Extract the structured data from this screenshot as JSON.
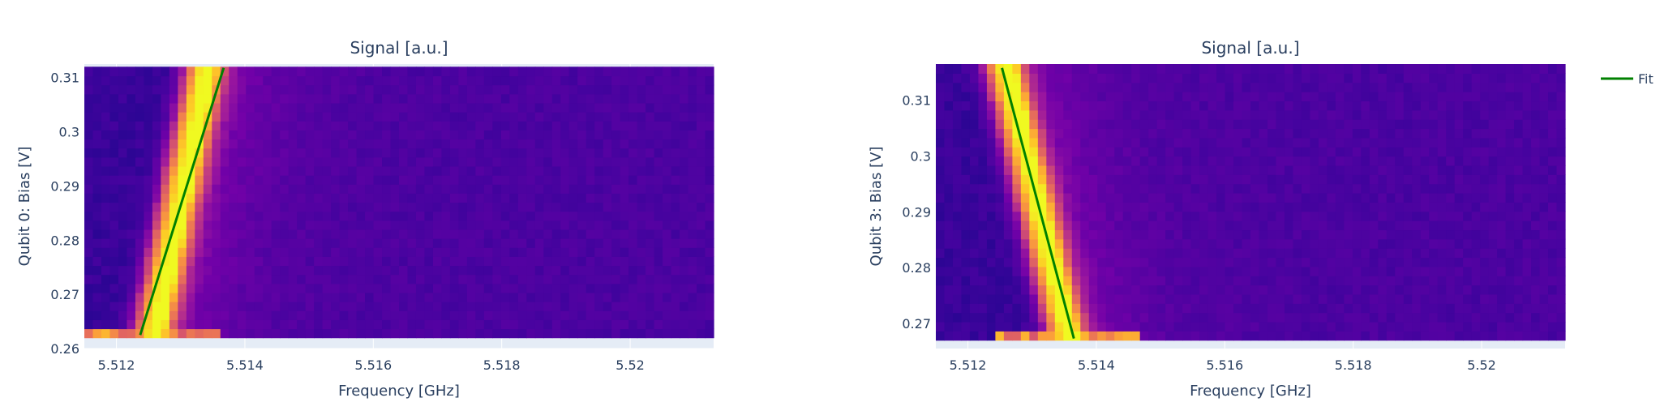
{
  "legend": {
    "fit_label": "Fit",
    "fit_color": "#008000",
    "placement": "top-right"
  },
  "colors": {
    "plot_bg": "#E5ECF6",
    "grid": "#ffffff",
    "text": "#2a3f5f",
    "fit": "#008000"
  },
  "colorscale": [
    "#0d0887",
    "#46039f",
    "#7201a8",
    "#9c179e",
    "#bd3786",
    "#d8576b",
    "#ed7953",
    "#fb9f3a",
    "#fdca26",
    "#f0f921"
  ],
  "chart_data": [
    {
      "type": "heatmap",
      "title": "Signal [a.u.]",
      "xlabel": "Frequency [GHz]",
      "ylabel": "Qubit 0: Bias [V]",
      "xlim": [
        5.5115,
        5.5213
      ],
      "ylim": [
        0.26,
        0.3125
      ],
      "x_ticks": [
        {
          "value": 5.512,
          "label": "5.512"
        },
        {
          "value": 5.514,
          "label": "5.514"
        },
        {
          "value": 5.516,
          "label": "5.516"
        },
        {
          "value": 5.518,
          "label": "5.518"
        },
        {
          "value": 5.52,
          "label": "5.52"
        }
      ],
      "y_ticks": [
        {
          "value": 0.26,
          "label": "0.26"
        },
        {
          "value": 0.27,
          "label": "0.27"
        },
        {
          "value": 0.28,
          "label": "0.28"
        },
        {
          "value": 0.29,
          "label": "0.29"
        },
        {
          "value": 0.3,
          "label": "0.3"
        },
        {
          "value": 0.31,
          "label": "0.31"
        }
      ],
      "heatmap": {
        "x_range": [
          5.5115,
          5.5213
        ],
        "y_range": [
          0.262,
          0.312
        ],
        "nx": 74,
        "ny": 30
      },
      "ridge": {
        "x_at_y_low": 5.51255,
        "x_at_y_high": 5.51338,
        "y_low": 0.262,
        "y_high": 0.312
      },
      "fit_line": {
        "x": [
          5.51237,
          5.51367
        ],
        "y": [
          0.2625,
          0.3118
        ]
      }
    },
    {
      "type": "heatmap",
      "title": "Signal [a.u.]",
      "xlabel": "Frequency [GHz]",
      "ylabel": "Qubit 3: Bias [V]",
      "xlim": [
        5.5115,
        5.5213
      ],
      "ylim": [
        0.2655,
        0.3165
      ],
      "x_ticks": [
        {
          "value": 5.512,
          "label": "5.512"
        },
        {
          "value": 5.514,
          "label": "5.514"
        },
        {
          "value": 5.516,
          "label": "5.516"
        },
        {
          "value": 5.518,
          "label": "5.518"
        },
        {
          "value": 5.52,
          "label": "5.52"
        }
      ],
      "y_ticks": [
        {
          "value": 0.27,
          "label": "0.27"
        },
        {
          "value": 0.28,
          "label": "0.28"
        },
        {
          "value": 0.29,
          "label": "0.29"
        },
        {
          "value": 0.3,
          "label": "0.3"
        },
        {
          "value": 0.31,
          "label": "0.31"
        }
      ],
      "heatmap": {
        "x_range": [
          5.5115,
          5.5213
        ],
        "y_range": [
          0.267,
          0.3165
        ],
        "nx": 74,
        "ny": 30
      },
      "ridge": {
        "x_at_y_low": 5.51355,
        "x_at_y_high": 5.51255,
        "y_low": 0.267,
        "y_high": 0.3165
      },
      "fit_line": {
        "x": [
          5.51365,
          5.51253
        ],
        "y": [
          0.2673,
          0.3158
        ]
      }
    }
  ]
}
